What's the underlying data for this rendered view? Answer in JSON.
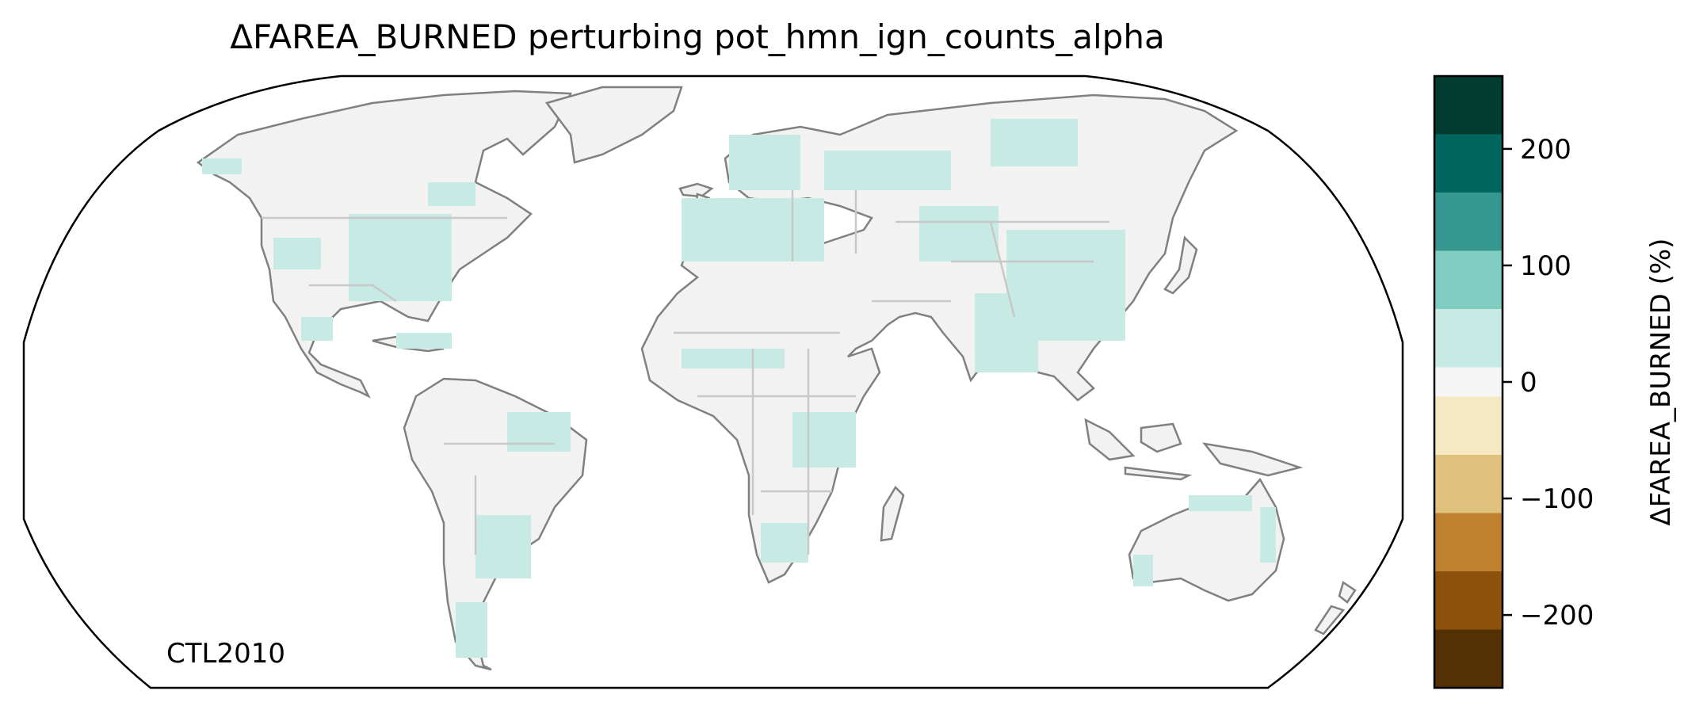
{
  "title": "ΔFAREA_BURNED perturbing pot_hmn_ign_counts_alpha",
  "corner_label": "CTL2010",
  "colorbar": {
    "label": "ΔFAREA_BURNED (%)",
    "range": [
      -262.5,
      262.5
    ],
    "ticks": [
      200,
      100,
      0,
      -100,
      -200
    ],
    "tick_labels": [
      "200",
      "100",
      "0",
      "−100",
      "−200"
    ],
    "bins": [
      {
        "from": 212.5,
        "to": 262.5,
        "color": "#003c30"
      },
      {
        "from": 162.5,
        "to": 212.5,
        "color": "#01665e"
      },
      {
        "from": 112.5,
        "to": 162.5,
        "color": "#35978f"
      },
      {
        "from": 62.5,
        "to": 112.5,
        "color": "#80cdc1"
      },
      {
        "from": 12.5,
        "to": 62.5,
        "color": "#c7eae5"
      },
      {
        "from": -12.5,
        "to": 12.5,
        "color": "#f5f5f5"
      },
      {
        "from": -62.5,
        "to": -12.5,
        "color": "#f6e8c3"
      },
      {
        "from": -112.5,
        "to": -62.5,
        "color": "#dfc27d"
      },
      {
        "from": -162.5,
        "to": -112.5,
        "color": "#bf812d"
      },
      {
        "from": -212.5,
        "to": -162.5,
        "color": "#8c510a"
      },
      {
        "from": -262.5,
        "to": -212.5,
        "color": "#543005"
      }
    ]
  },
  "map": {
    "projection": "Robinson",
    "land_fill": "#f2f2f2",
    "coastline_color": "#808080",
    "border_color": "#c8c8c8",
    "positive_change_color": "#c7eae5",
    "regions": [
      "north-america",
      "greenland",
      "central-america",
      "south-america",
      "europe",
      "africa",
      "arabia",
      "asia",
      "india",
      "southeast-asia",
      "japan",
      "indonesia",
      "new-guinea",
      "australia",
      "new-zealand",
      "madagascar",
      "uk",
      "iceland"
    ]
  }
}
